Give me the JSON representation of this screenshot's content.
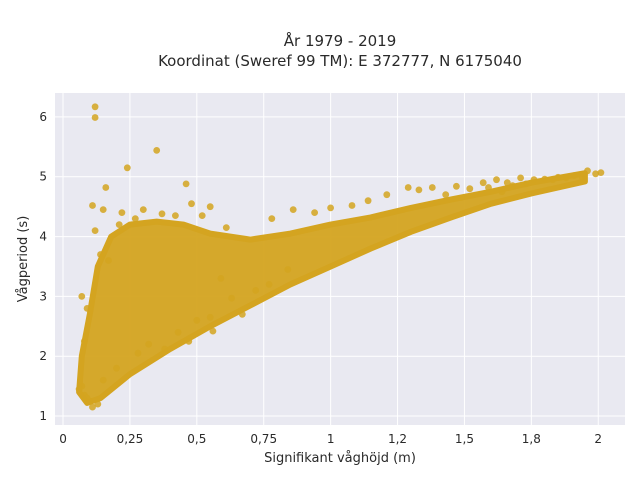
{
  "chart_data": {
    "type": "scatter",
    "title_line1": "År 1979 - 2019",
    "title_line2": "Koordinat (Sweref 99 TM): E 372777, N 6175040",
    "xlabel": "Signifikant våghöjd (m)",
    "ylabel": "Vågperiod (s)",
    "xlim": [
      -0.03,
      2.1
    ],
    "ylim": [
      0.85,
      6.4
    ],
    "x_ticks": [
      0,
      0.25,
      0.5,
      0.75,
      1,
      1.25,
      1.5,
      1.75,
      2
    ],
    "x_tick_labels": [
      "0",
      "0,25",
      "0,5",
      "0,75",
      "1",
      "1,2",
      "1,5",
      "1,8",
      "2"
    ],
    "y_ticks": [
      1,
      2,
      3,
      4,
      5,
      6
    ],
    "y_tick_labels": [
      "1",
      "2",
      "3",
      "4",
      "5",
      "6"
    ],
    "grid": true,
    "background": "#e9e9f1",
    "marker_color": "#d4a420",
    "points": [
      [
        0.12,
        6.17
      ],
      [
        0.12,
        5.99
      ],
      [
        0.35,
        5.44
      ],
      [
        0.24,
        5.15
      ],
      [
        0.46,
        4.88
      ],
      [
        0.16,
        4.82
      ],
      [
        0.11,
        4.52
      ],
      [
        0.15,
        4.45
      ],
      [
        0.22,
        4.4
      ],
      [
        0.3,
        4.45
      ],
      [
        0.37,
        4.38
      ],
      [
        0.48,
        4.55
      ],
      [
        0.55,
        4.5
      ],
      [
        0.42,
        4.35
      ],
      [
        0.27,
        4.3
      ],
      [
        0.52,
        4.35
      ],
      [
        0.61,
        4.15
      ],
      [
        0.21,
        4.2
      ],
      [
        0.12,
        4.1
      ],
      [
        0.78,
        4.3
      ],
      [
        0.86,
        4.45
      ],
      [
        0.94,
        4.4
      ],
      [
        1.0,
        4.48
      ],
      [
        1.08,
        4.52
      ],
      [
        1.14,
        4.6
      ],
      [
        1.21,
        4.7
      ],
      [
        1.29,
        4.82
      ],
      [
        1.33,
        4.78
      ],
      [
        1.38,
        4.82
      ],
      [
        1.43,
        4.7
      ],
      [
        1.47,
        4.84
      ],
      [
        1.52,
        4.8
      ],
      [
        1.57,
        4.9
      ],
      [
        1.62,
        4.95
      ],
      [
        1.66,
        4.9
      ],
      [
        1.71,
        4.98
      ],
      [
        1.76,
        4.95
      ],
      [
        1.8,
        4.96
      ],
      [
        1.85,
        4.99
      ],
      [
        1.88,
        4.98
      ],
      [
        1.91,
        5.02
      ],
      [
        1.94,
        5.0
      ],
      [
        1.96,
        5.1
      ],
      [
        1.99,
        5.05
      ],
      [
        2.01,
        5.07
      ],
      [
        1.73,
        4.88
      ],
      [
        1.68,
        4.85
      ],
      [
        1.83,
        4.95
      ],
      [
        1.59,
        4.82
      ],
      [
        1.64,
        4.75
      ],
      [
        0.07,
        1.5
      ],
      [
        0.06,
        1.45
      ],
      [
        0.08,
        1.35
      ],
      [
        0.1,
        1.25
      ],
      [
        0.11,
        1.15
      ],
      [
        0.13,
        1.2
      ],
      [
        0.09,
        1.3
      ],
      [
        0.08,
        2.25
      ],
      [
        0.07,
        3.0
      ],
      [
        0.09,
        2.8
      ],
      [
        0.14,
        3.7
      ],
      [
        0.17,
        3.6
      ],
      [
        0.59,
        3.3
      ],
      [
        0.63,
        2.97
      ],
      [
        0.56,
        2.42
      ],
      [
        0.47,
        2.25
      ],
      [
        0.38,
        2.12
      ],
      [
        0.77,
        3.2
      ],
      [
        0.84,
        3.45
      ],
      [
        0.67,
        2.7
      ],
      [
        0.72,
        3.1
      ],
      [
        0.55,
        2.65
      ],
      [
        0.5,
        2.6
      ],
      [
        0.43,
        2.4
      ],
      [
        0.32,
        2.2
      ],
      [
        0.28,
        2.05
      ],
      [
        0.2,
        1.8
      ],
      [
        0.15,
        1.6
      ]
    ]
  }
}
